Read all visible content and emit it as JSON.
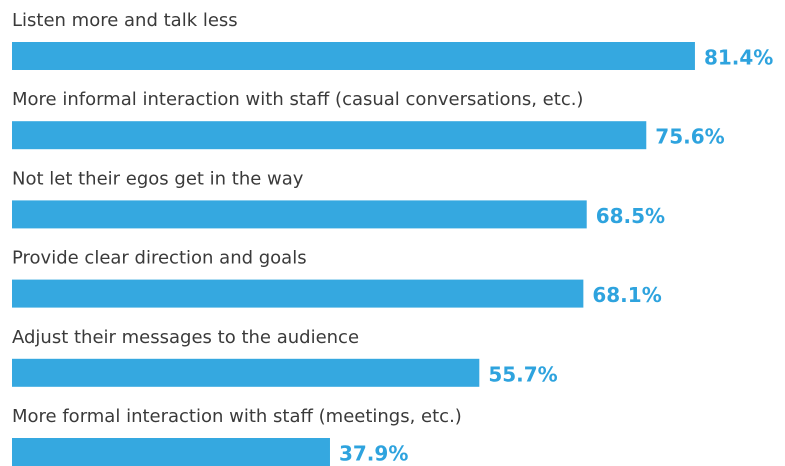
{
  "chart_data": {
    "type": "bar",
    "orientation": "horizontal",
    "categories": [
      "Listen more and talk less",
      "More informal interaction with staff (casual conversations, etc.)",
      "Not let their egos get in the way",
      "Provide clear direction and goals",
      "Adjust their messages to the audience",
      "More formal interaction with staff (meetings, etc.)"
    ],
    "values": [
      81.4,
      75.6,
      68.5,
      68.1,
      55.7,
      37.9
    ],
    "value_labels": [
      "81.4%",
      "75.6%",
      "68.5%",
      "68.1%",
      "55.7%",
      "37.9%"
    ],
    "color": "#35a8e0"
  }
}
